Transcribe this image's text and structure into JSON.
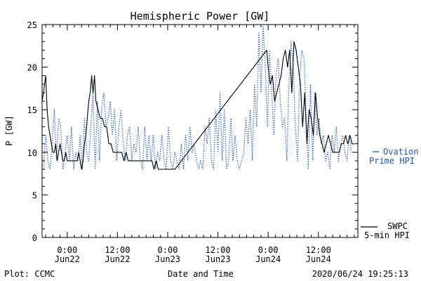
{
  "chart_data": {
    "type": "line",
    "title": "Hemispheric Power [GW]",
    "xlabel": "Date and Time",
    "ylabel": "P [GW]",
    "ylim": [
      0,
      25
    ],
    "yticks": [
      0,
      5,
      10,
      15,
      20,
      25
    ],
    "xlim": [
      -3.5,
      40.5
    ],
    "x_unit": "hours since 2020-06-22 00:00",
    "xticks": [
      {
        "x": 0,
        "time": "0:00",
        "date": "Jun22"
      },
      {
        "x": 7,
        "time": "12:00",
        "date": "Jun22"
      },
      {
        "x": 14,
        "time": "0:00",
        "date": "Jun23"
      },
      {
        "x": 21,
        "time": "12:00",
        "date": "Jun23"
      },
      {
        "x": 28,
        "time": "0:00",
        "date": "Jun24"
      },
      {
        "x": 35,
        "time": "12:00",
        "date": "Jun24"
      }
    ],
    "series": [
      {
        "name": "Ovation Prime HPI",
        "legend_line1": "Ovation",
        "legend_line2": "Prime HPI",
        "color": "#1f57b5",
        "style": "dotted",
        "x": [
          -3.3,
          -3.0,
          -2.7,
          -2.4,
          -2.1,
          -1.8,
          -1.5,
          -1.2,
          -0.9,
          -0.6,
          -0.3,
          0.0,
          0.3,
          0.6,
          0.9,
          1.2,
          1.5,
          1.8,
          2.1,
          2.4,
          2.7,
          3.0,
          3.3,
          3.6,
          3.9,
          4.2,
          4.5,
          4.8,
          5.1,
          5.4,
          5.7,
          6.0,
          6.3,
          6.6,
          6.9,
          7.2,
          7.5,
          7.8,
          8.1,
          8.4,
          8.7,
          9.0,
          9.3,
          9.6,
          9.9,
          10.2,
          10.5,
          10.8,
          11.1,
          11.4,
          11.7,
          12.0,
          12.3,
          12.6,
          12.9,
          13.2,
          13.5,
          13.8,
          14.1,
          14.4,
          14.7,
          15.0,
          15.3,
          15.6,
          15.9,
          16.2,
          16.5,
          16.8,
          17.1,
          17.4,
          17.7,
          18.0,
          18.3,
          18.6,
          18.9,
          19.2,
          19.5,
          19.8,
          20.1,
          20.4,
          20.7,
          21.0,
          21.3,
          21.6,
          21.9,
          22.2,
          22.5,
          22.8,
          23.1,
          23.4,
          23.7,
          24.0,
          24.3,
          24.6,
          24.9,
          25.2,
          25.5,
          25.8,
          26.1,
          26.4,
          26.7,
          27.0,
          27.3,
          27.6,
          27.9,
          28.2,
          28.5,
          28.8,
          29.1,
          29.4,
          29.7,
          30.0,
          30.3,
          30.6,
          30.9,
          31.2,
          31.5,
          31.8,
          32.1,
          32.4,
          32.7,
          33.0,
          33.3,
          33.6,
          33.9,
          34.2,
          34.5,
          34.8,
          35.1,
          35.4,
          35.7,
          36.0,
          36.3,
          36.6,
          36.9,
          37.2,
          37.5,
          37.8,
          38.1,
          38.4,
          38.7,
          39.0,
          39.3,
          39.6
        ],
        "y": [
          8,
          12,
          9,
          8,
          11,
          15,
          9,
          14,
          13,
          8,
          10,
          12,
          9,
          13,
          8,
          10,
          9,
          12,
          8,
          14,
          10,
          9,
          13,
          17,
          8,
          16,
          9,
          15,
          17,
          13,
          14,
          16,
          12,
          15,
          9,
          13,
          15,
          11,
          9,
          12,
          13,
          9,
          11,
          10,
          13,
          9,
          8,
          13,
          9,
          12,
          9,
          12,
          8,
          10,
          9,
          12,
          9,
          8,
          13,
          9,
          8,
          10,
          9,
          8,
          11,
          8,
          12,
          9,
          13,
          10,
          11,
          9,
          8,
          9,
          8,
          13,
          11,
          14,
          9,
          8,
          15,
          10,
          17,
          9,
          15,
          8,
          9,
          14,
          9,
          12,
          9,
          8,
          9,
          10,
          14,
          11,
          15,
          9,
          18,
          13,
          24,
          17,
          25,
          20,
          13,
          22,
          17,
          12,
          19,
          21,
          16,
          13,
          14,
          9,
          18,
          23,
          20,
          13,
          9,
          19,
          22,
          21,
          14,
          8,
          18,
          9,
          17,
          12,
          14,
          11,
          12,
          9,
          10,
          8,
          12,
          10,
          13,
          9,
          11,
          12,
          10,
          9,
          12,
          10
        ]
      },
      {
        "name": "SWPC 5-min HPI",
        "legend_line1": "SWPC",
        "legend_line2": "5-min HPI",
        "color": "#000000",
        "style": "solid",
        "x": [
          -3.5,
          -3.3,
          -3.0,
          -2.8,
          -2.6,
          -2.4,
          -2.2,
          -2.0,
          -1.8,
          -1.6,
          -1.4,
          -1.2,
          -1.0,
          -0.8,
          -0.6,
          -0.4,
          -0.2,
          0.0,
          0.2,
          0.4,
          0.6,
          0.8,
          1.0,
          1.2,
          1.4,
          1.6,
          1.8,
          2.0,
          2.2,
          2.4,
          2.6,
          2.8,
          3.0,
          3.2,
          3.4,
          3.6,
          3.8,
          4.0,
          4.3,
          4.6,
          4.9,
          5.2,
          5.5,
          5.8,
          6.1,
          6.4,
          6.7,
          7.0,
          7.3,
          7.6,
          7.9,
          8.2,
          8.5,
          8.8,
          9.1,
          9.4,
          9.7,
          10.0,
          10.3,
          10.6,
          10.9,
          11.2,
          11.5,
          11.8,
          12.1,
          12.4,
          12.7,
          13.0,
          13.3,
          13.6,
          14.0,
          14.5,
          15.0,
          27.8,
          28.0,
          28.3,
          28.6,
          28.9,
          29.2,
          29.5,
          29.8,
          30.1,
          30.4,
          30.7,
          31.0,
          31.3,
          31.6,
          31.9,
          32.2,
          32.5,
          32.8,
          33.1,
          33.4,
          33.7,
          34.0,
          34.3,
          34.6,
          34.9,
          35.2,
          35.5,
          35.8,
          36.1,
          36.4,
          36.7,
          37.0,
          37.3,
          37.6,
          37.9,
          38.2,
          38.5,
          38.8,
          39.1,
          39.4,
          39.7,
          40.0
        ],
        "y": [
          16,
          17,
          19,
          15,
          13,
          12,
          11,
          10,
          10,
          11,
          9,
          10,
          11,
          10,
          9,
          9,
          10,
          9,
          9,
          9,
          9,
          9,
          9,
          9,
          9,
          10,
          9,
          8,
          9,
          11,
          12,
          14,
          16,
          17,
          19,
          17,
          19,
          16,
          15,
          14,
          14,
          13,
          13,
          11,
          11,
          10,
          10,
          10,
          10,
          10,
          9,
          10,
          9,
          9,
          9,
          9,
          9,
          9,
          9,
          9,
          9,
          9,
          9,
          9,
          8,
          9,
          8,
          8,
          8,
          8,
          8,
          8,
          8,
          22,
          20,
          18,
          19,
          16,
          17,
          18,
          19,
          21,
          22,
          20,
          22,
          17,
          23,
          22,
          20,
          18,
          13,
          17,
          11,
          15,
          14,
          12,
          17,
          14,
          12,
          11,
          10,
          11,
          12,
          11,
          10,
          10,
          10,
          10,
          11,
          11,
          12,
          11,
          12,
          11,
          11
        ]
      }
    ],
    "legend_position": "right"
  },
  "footer": {
    "left": "Plot: CCMC",
    "right": "2020/06/24 19:25:13"
  }
}
